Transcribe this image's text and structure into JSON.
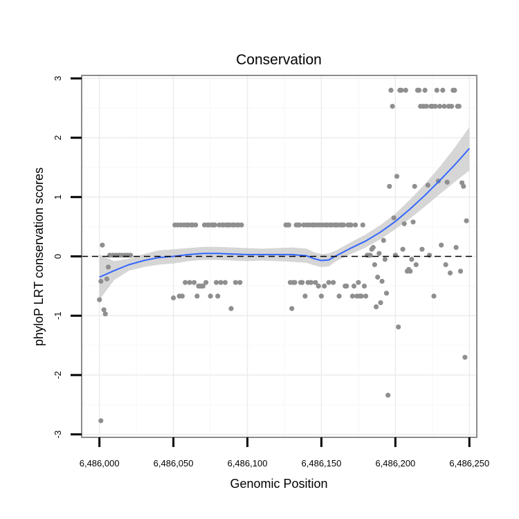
{
  "chart_data": {
    "type": "scatter",
    "title": "Conservation",
    "xlabel": "Genomic Position",
    "ylabel": "phyloP LRT conservation scores",
    "xlim": [
      6485988,
      6486255
    ],
    "ylim": [
      -3.05,
      3.05
    ],
    "x_ticks": [
      6486000,
      6486050,
      6486100,
      6486150,
      6486200,
      6486250
    ],
    "x_tick_labels": [
      "6,486,000",
      "6,486,050",
      "6,486,100",
      "6,486,150",
      "6,486,200",
      "6,486,250"
    ],
    "y_ticks": [
      -3,
      -2,
      -1,
      0,
      1,
      2,
      3
    ],
    "y_tick_labels": [
      "-3",
      "-2",
      "-1",
      "0",
      "1",
      "2",
      "3"
    ],
    "reference_line": {
      "y": 0,
      "style": "dashed",
      "color": "#000000"
    },
    "colors": {
      "points": "#8f8f8f",
      "smooth": "#3366ff",
      "band": "#c8c8c8"
    },
    "series": [
      {
        "name": "scores",
        "points": [
          [
            6486000,
            -0.73
          ],
          [
            6486001,
            -0.42
          ],
          [
            6486001,
            -2.77
          ],
          [
            6486002,
            0.19
          ],
          [
            6486003,
            -0.9
          ],
          [
            6486004,
            -0.97
          ],
          [
            6486005,
            -0.38
          ],
          [
            6486006,
            -0.18
          ],
          [
            6486007,
            0.02
          ],
          [
            6486009,
            0.02
          ],
          [
            6486011,
            0.02
          ],
          [
            6486013,
            0.02
          ],
          [
            6486015,
            0.02
          ],
          [
            6486017,
            0.02
          ],
          [
            6486019,
            0.02
          ],
          [
            6486021,
            0.02
          ],
          [
            6486050,
            -0.7
          ],
          [
            6486051,
            0.53
          ],
          [
            6486053,
            0.53
          ],
          [
            6486054,
            -0.67
          ],
          [
            6486055,
            0.53
          ],
          [
            6486056,
            -0.67
          ],
          [
            6486057,
            0.53
          ],
          [
            6486058,
            -0.44
          ],
          [
            6486059,
            0.53
          ],
          [
            6486060,
            0.53
          ],
          [
            6486061,
            -0.44
          ],
          [
            6486062,
            0.53
          ],
          [
            6486063,
            0.53
          ],
          [
            6486064,
            -0.44
          ],
          [
            6486065,
            0.53
          ],
          [
            6486066,
            -0.67
          ],
          [
            6486067,
            -0.5
          ],
          [
            6486068,
            -0.5
          ],
          [
            6486069,
            -0.5
          ],
          [
            6486070,
            -0.5
          ],
          [
            6486071,
            0.53
          ],
          [
            6486072,
            -0.44
          ],
          [
            6486073,
            0.53
          ],
          [
            6486074,
            0.53
          ],
          [
            6486075,
            -0.67
          ],
          [
            6486076,
            0.53
          ],
          [
            6486077,
            0.53
          ],
          [
            6486078,
            0.53
          ],
          [
            6486079,
            -0.44
          ],
          [
            6486080,
            -0.67
          ],
          [
            6486081,
            0.53
          ],
          [
            6486082,
            -0.44
          ],
          [
            6486083,
            0.53
          ],
          [
            6486084,
            0.53
          ],
          [
            6486085,
            -0.44
          ],
          [
            6486086,
            0.53
          ],
          [
            6486087,
            0.53
          ],
          [
            6486088,
            0.53
          ],
          [
            6486089,
            -0.88
          ],
          [
            6486090,
            0.53
          ],
          [
            6486091,
            0.53
          ],
          [
            6486092,
            -0.44
          ],
          [
            6486093,
            0.53
          ],
          [
            6486094,
            0.53
          ],
          [
            6486095,
            -0.44
          ],
          [
            6486096,
            0.53
          ],
          [
            6486126,
            0.53
          ],
          [
            6486127,
            0.53
          ],
          [
            6486128,
            0.53
          ],
          [
            6486129,
            -0.44
          ],
          [
            6486130,
            -0.88
          ],
          [
            6486131,
            -0.44
          ],
          [
            6486132,
            -0.44
          ],
          [
            6486133,
            0.53
          ],
          [
            6486134,
            0.53
          ],
          [
            6486135,
            0.53
          ],
          [
            6486136,
            -0.44
          ],
          [
            6486137,
            -0.44
          ],
          [
            6486138,
            0.53
          ],
          [
            6486139,
            -0.67
          ],
          [
            6486140,
            0.53
          ],
          [
            6486141,
            -0.44
          ],
          [
            6486142,
            0.53
          ],
          [
            6486143,
            -0.44
          ],
          [
            6486144,
            0.53
          ],
          [
            6486145,
            0.53
          ],
          [
            6486146,
            -0.44
          ],
          [
            6486147,
            0.53
          ],
          [
            6486148,
            -0.5
          ],
          [
            6486149,
            0.53
          ],
          [
            6486150,
            -0.67
          ],
          [
            6486151,
            0.53
          ],
          [
            6486152,
            -0.5
          ],
          [
            6486153,
            0.53
          ],
          [
            6486154,
            0.53
          ],
          [
            6486155,
            -0.44
          ],
          [
            6486156,
            0.53
          ],
          [
            6486157,
            0.53
          ],
          [
            6486158,
            -0.44
          ],
          [
            6486159,
            0.53
          ],
          [
            6486160,
            0.53
          ],
          [
            6486161,
            0.53
          ],
          [
            6486162,
            -0.67
          ],
          [
            6486163,
            0.53
          ],
          [
            6486164,
            0.53
          ],
          [
            6486165,
            0.53
          ],
          [
            6486166,
            -0.5
          ],
          [
            6486167,
            -0.5
          ],
          [
            6486168,
            0.53
          ],
          [
            6486169,
            0.53
          ],
          [
            6486170,
            0.53
          ],
          [
            6486171,
            -0.67
          ],
          [
            6486172,
            -0.5
          ],
          [
            6486173,
            0.53
          ],
          [
            6486174,
            -0.67
          ],
          [
            6486175,
            -0.44
          ],
          [
            6486176,
            -0.67
          ],
          [
            6486177,
            -0.67
          ],
          [
            6486178,
            0.53
          ],
          [
            6486179,
            -0.5
          ],
          [
            6486180,
            -0.67
          ],
          [
            6486181,
            0.02
          ],
          [
            6486182,
            0.02
          ],
          [
            6486183,
            0.02
          ],
          [
            6486184,
            0.12
          ],
          [
            6486185,
            0.15
          ],
          [
            6486186,
            -0.14
          ],
          [
            6486187,
            -0.85
          ],
          [
            6486188,
            -0.35
          ],
          [
            6486189,
            0.05
          ],
          [
            6486190,
            -0.78
          ],
          [
            6486191,
            -0.42
          ],
          [
            6486192,
            0.27
          ],
          [
            6486193,
            -0.05
          ],
          [
            6486194,
            -0.62
          ],
          [
            6486195,
            -2.34
          ],
          [
            6486196,
            1.18
          ],
          [
            6486197,
            2.8
          ],
          [
            6486198,
            2.53
          ],
          [
            6486199,
            0.65
          ],
          [
            6486200,
            0.02
          ],
          [
            6486201,
            1.35
          ],
          [
            6486202,
            -1.19
          ],
          [
            6486203,
            2.8
          ],
          [
            6486204,
            2.8
          ],
          [
            6486205,
            0.12
          ],
          [
            6486206,
            0.55
          ],
          [
            6486207,
            2.8
          ],
          [
            6486208,
            -0.25
          ],
          [
            6486209,
            -0.22
          ],
          [
            6486210,
            -0.25
          ],
          [
            6486211,
            -0.05
          ],
          [
            6486212,
            0.58
          ],
          [
            6486213,
            1.18
          ],
          [
            6486214,
            -0.14
          ],
          [
            6486215,
            2.8
          ],
          [
            6486216,
            2.8
          ],
          [
            6486217,
            2.53
          ],
          [
            6486218,
            0.12
          ],
          [
            6486219,
            2.53
          ],
          [
            6486220,
            2.8
          ],
          [
            6486221,
            2.53
          ],
          [
            6486222,
            1.2
          ],
          [
            6486223,
            0.02
          ],
          [
            6486224,
            2.53
          ],
          [
            6486225,
            2.53
          ],
          [
            6486226,
            -0.67
          ],
          [
            6486227,
            2.53
          ],
          [
            6486228,
            2.8
          ],
          [
            6486229,
            1.27
          ],
          [
            6486230,
            2.53
          ],
          [
            6486231,
            0.19
          ],
          [
            6486232,
            2.8
          ],
          [
            6486233,
            2.53
          ],
          [
            6486234,
            -0.14
          ],
          [
            6486235,
            1.25
          ],
          [
            6486236,
            2.53
          ],
          [
            6486237,
            -0.28
          ],
          [
            6486238,
            2.53
          ],
          [
            6486239,
            2.8
          ],
          [
            6486240,
            2.8
          ],
          [
            6486241,
            0.15
          ],
          [
            6486242,
            2.53
          ],
          [
            6486243,
            2.53
          ],
          [
            6486244,
            -0.25
          ],
          [
            6486245,
            1.24
          ],
          [
            6486246,
            1.18
          ],
          [
            6486247,
            -1.7
          ],
          [
            6486248,
            0.6
          ]
        ]
      }
    ],
    "smooth_fit": {
      "method": "loess",
      "x": [
        6486000,
        6486010,
        6486020,
        6486030,
        6486040,
        6486050,
        6486060,
        6486070,
        6486080,
        6486090,
        6486100,
        6486110,
        6486120,
        6486130,
        6486140,
        6486145,
        6486150,
        6486155,
        6486160,
        6486170,
        6486180,
        6486190,
        6486200,
        6486210,
        6486220,
        6486230,
        6486240,
        6486250
      ],
      "y": [
        -0.35,
        -0.24,
        -0.14,
        -0.07,
        -0.02,
        0.0,
        0.03,
        0.05,
        0.05,
        0.04,
        0.03,
        0.03,
        0.03,
        0.03,
        0.01,
        -0.04,
        -0.07,
        -0.06,
        0.01,
        0.14,
        0.26,
        0.41,
        0.59,
        0.8,
        1.03,
        1.28,
        1.54,
        1.82
      ],
      "se_lower": [
        -0.73,
        -0.4,
        -0.24,
        -0.18,
        -0.14,
        -0.12,
        -0.08,
        -0.06,
        -0.06,
        -0.07,
        -0.08,
        -0.07,
        -0.08,
        -0.09,
        -0.11,
        -0.15,
        -0.18,
        -0.17,
        -0.08,
        0.04,
        0.15,
        0.29,
        0.46,
        0.64,
        0.84,
        1.05,
        1.25,
        1.45
      ],
      "se_upper": [
        0.03,
        -0.08,
        -0.04,
        0.04,
        0.1,
        0.12,
        0.14,
        0.16,
        0.16,
        0.15,
        0.14,
        0.13,
        0.14,
        0.15,
        0.13,
        0.07,
        0.04,
        0.05,
        0.1,
        0.24,
        0.37,
        0.53,
        0.72,
        0.96,
        1.22,
        1.51,
        1.83,
        2.18
      ]
    }
  }
}
